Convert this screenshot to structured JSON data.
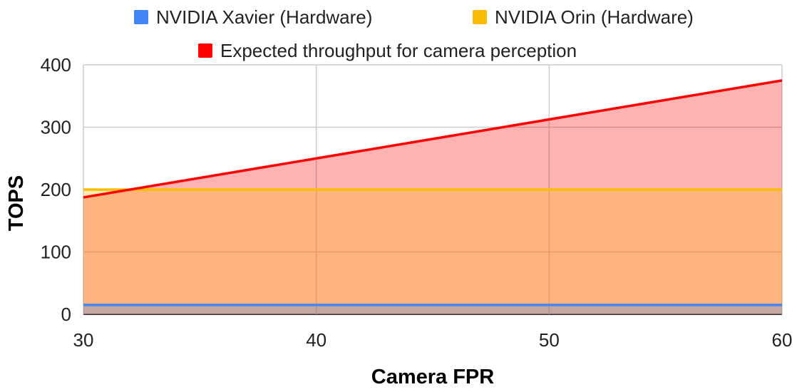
{
  "chart_data": {
    "type": "area",
    "title": "",
    "xlabel": "Camera FPR",
    "ylabel": "TOPS",
    "xlim": [
      30,
      60
    ],
    "ylim": [
      0,
      400
    ],
    "x_ticks": [
      "30",
      "40",
      "50",
      "60"
    ],
    "y_ticks": [
      "0",
      "100",
      "200",
      "300",
      "400"
    ],
    "grid": true,
    "legend_position": "top",
    "x": [
      30,
      60
    ],
    "series": [
      {
        "name": "NVIDIA Xavier (Hardware)",
        "color": "#4285f4",
        "values": [
          15,
          15
        ]
      },
      {
        "name": "NVIDIA Orin (Hardware)",
        "color": "#fbbc04",
        "values": [
          200,
          200
        ]
      },
      {
        "name": "Expected throughput for camera perception",
        "color": "#ff0000",
        "values": [
          187.5,
          375
        ]
      }
    ]
  }
}
